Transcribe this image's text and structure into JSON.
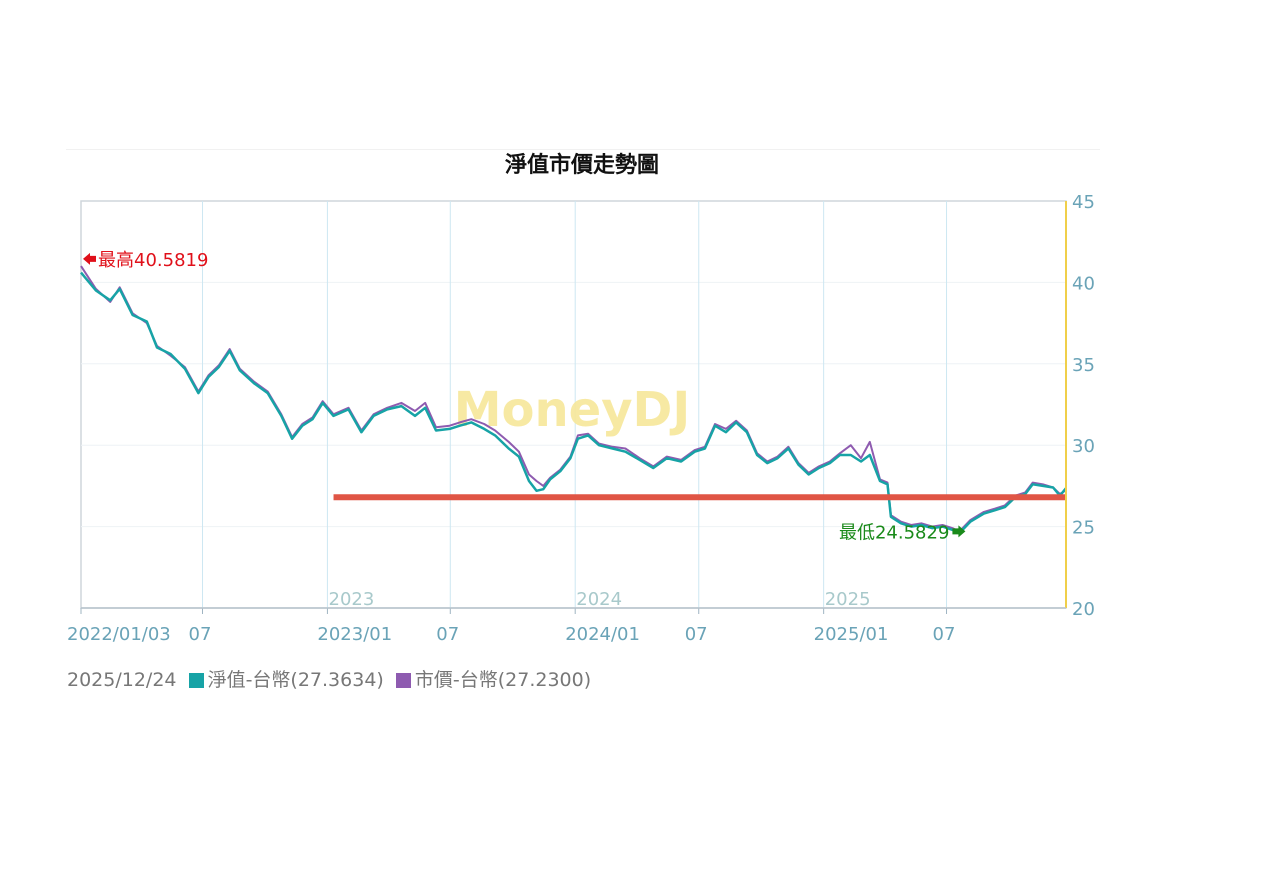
{
  "chart_data": {
    "type": "line",
    "title": "淨值市價走勢圖",
    "watermark": "MoneyDJ",
    "x_range": [
      "2022-01-03",
      "2025-12-24"
    ],
    "ylim": [
      20,
      45
    ],
    "y_ticks": [
      20,
      25,
      30,
      35,
      40,
      45
    ],
    "x_tick_labels": [
      {
        "date": "2022-01-03",
        "label": "2022/01/03"
      },
      {
        "date": "2022-07-01",
        "label": "07"
      },
      {
        "date": "2023-01-01",
        "label": "2023/01"
      },
      {
        "date": "2023-07-01",
        "label": "07"
      },
      {
        "date": "2024-01-01",
        "label": "2024/01"
      },
      {
        "date": "2024-07-01",
        "label": "07"
      },
      {
        "date": "2025-01-01",
        "label": "2025/01"
      },
      {
        "date": "2025-07-01",
        "label": "07"
      }
    ],
    "year_labels": [
      {
        "date": "2023-01-01",
        "label": "2023"
      },
      {
        "date": "2024-01-01",
        "label": "2024"
      },
      {
        "date": "2025-01-01",
        "label": "2025"
      }
    ],
    "reference_line": {
      "value": 26.8,
      "start": "2023-01-10",
      "end": "2025-12-24",
      "color": "#e05545"
    },
    "annotations": {
      "high": {
        "label": "最高40.5819",
        "value": 40.5819,
        "date": "2022-01-03",
        "color": "#e0101a"
      },
      "low": {
        "label": "最低24.5829",
        "value": 24.5829,
        "date": "2025-07-20",
        "color": "#1a8a1a"
      }
    },
    "series": [
      {
        "name": "淨值-台幣",
        "color": "#17a3a6",
        "points": [
          [
            "2022-01-03",
            40.6
          ],
          [
            "2022-01-25",
            39.5
          ],
          [
            "2022-02-15",
            38.9
          ],
          [
            "2022-03-01",
            39.6
          ],
          [
            "2022-03-20",
            38.0
          ],
          [
            "2022-04-10",
            37.6
          ],
          [
            "2022-04-25",
            36.0
          ],
          [
            "2022-05-15",
            35.6
          ],
          [
            "2022-06-05",
            34.7
          ],
          [
            "2022-06-25",
            33.2
          ],
          [
            "2022-07-10",
            34.2
          ],
          [
            "2022-07-25",
            34.8
          ],
          [
            "2022-08-10",
            35.8
          ],
          [
            "2022-08-25",
            34.6
          ],
          [
            "2022-09-15",
            33.8
          ],
          [
            "2022-10-05",
            33.2
          ],
          [
            "2022-10-25",
            31.8
          ],
          [
            "2022-11-10",
            30.4
          ],
          [
            "2022-11-25",
            31.2
          ],
          [
            "2022-12-10",
            31.6
          ],
          [
            "2022-12-25",
            32.6
          ],
          [
            "2023-01-10",
            31.8
          ],
          [
            "2023-02-01",
            32.2
          ],
          [
            "2023-02-20",
            30.8
          ],
          [
            "2023-03-10",
            31.8
          ],
          [
            "2023-03-30",
            32.2
          ],
          [
            "2023-04-20",
            32.4
          ],
          [
            "2023-05-10",
            31.8
          ],
          [
            "2023-05-25",
            32.3
          ],
          [
            "2023-06-10",
            30.9
          ],
          [
            "2023-06-30",
            31.0
          ],
          [
            "2023-07-15",
            31.2
          ],
          [
            "2023-08-01",
            31.4
          ],
          [
            "2023-08-20",
            31.0
          ],
          [
            "2023-09-05",
            30.6
          ],
          [
            "2023-09-25",
            29.8
          ],
          [
            "2023-10-10",
            29.3
          ],
          [
            "2023-10-25",
            27.8
          ],
          [
            "2023-11-05",
            27.2
          ],
          [
            "2023-11-15",
            27.3
          ],
          [
            "2023-11-25",
            27.9
          ],
          [
            "2023-12-10",
            28.4
          ],
          [
            "2023-12-25",
            29.2
          ],
          [
            "2024-01-05",
            30.4
          ],
          [
            "2024-01-20",
            30.6
          ],
          [
            "2024-02-05",
            30.0
          ],
          [
            "2024-02-25",
            29.8
          ],
          [
            "2024-03-15",
            29.6
          ],
          [
            "2024-04-05",
            29.1
          ],
          [
            "2024-04-25",
            28.6
          ],
          [
            "2024-05-15",
            29.2
          ],
          [
            "2024-06-05",
            29.0
          ],
          [
            "2024-06-25",
            29.6
          ],
          [
            "2024-07-10",
            29.8
          ],
          [
            "2024-07-25",
            31.2
          ],
          [
            "2024-08-10",
            30.8
          ],
          [
            "2024-08-25",
            31.4
          ],
          [
            "2024-09-10",
            30.8
          ],
          [
            "2024-09-25",
            29.4
          ],
          [
            "2024-10-10",
            28.9
          ],
          [
            "2024-10-25",
            29.2
          ],
          [
            "2024-11-10",
            29.8
          ],
          [
            "2024-11-25",
            28.8
          ],
          [
            "2024-12-10",
            28.2
          ],
          [
            "2024-12-25",
            28.6
          ],
          [
            "2025-01-10",
            28.9
          ],
          [
            "2025-01-25",
            29.4
          ],
          [
            "2025-02-10",
            29.4
          ],
          [
            "2025-02-25",
            29.0
          ],
          [
            "2025-03-10",
            29.4
          ],
          [
            "2025-03-25",
            27.8
          ],
          [
            "2025-04-05",
            27.6
          ],
          [
            "2025-04-10",
            25.6
          ],
          [
            "2025-04-25",
            25.2
          ],
          [
            "2025-05-10",
            25.0
          ],
          [
            "2025-05-25",
            25.1
          ],
          [
            "2025-06-10",
            24.9
          ],
          [
            "2025-06-25",
            25.0
          ],
          [
            "2025-07-10",
            24.8
          ],
          [
            "2025-07-20",
            24.6
          ],
          [
            "2025-08-05",
            25.3
          ],
          [
            "2025-08-25",
            25.8
          ],
          [
            "2025-09-10",
            26.0
          ],
          [
            "2025-09-25",
            26.2
          ],
          [
            "2025-10-10",
            26.8
          ],
          [
            "2025-10-25",
            27.0
          ],
          [
            "2025-11-05",
            27.6
          ],
          [
            "2025-11-20",
            27.5
          ],
          [
            "2025-12-05",
            27.4
          ],
          [
            "2025-12-15",
            26.9
          ],
          [
            "2025-12-24",
            27.36
          ]
        ]
      },
      {
        "name": "市價-台幣",
        "color": "#8e5bb0",
        "points": [
          [
            "2022-01-03",
            41.0
          ],
          [
            "2022-01-25",
            39.6
          ],
          [
            "2022-02-15",
            38.8
          ],
          [
            "2022-03-01",
            39.7
          ],
          [
            "2022-03-20",
            38.1
          ],
          [
            "2022-04-10",
            37.5
          ],
          [
            "2022-04-25",
            36.1
          ],
          [
            "2022-05-15",
            35.5
          ],
          [
            "2022-06-05",
            34.8
          ],
          [
            "2022-06-25",
            33.3
          ],
          [
            "2022-07-10",
            34.3
          ],
          [
            "2022-07-25",
            34.9
          ],
          [
            "2022-08-10",
            35.9
          ],
          [
            "2022-08-25",
            34.7
          ],
          [
            "2022-09-15",
            33.9
          ],
          [
            "2022-10-05",
            33.3
          ],
          [
            "2022-10-25",
            31.9
          ],
          [
            "2022-11-10",
            30.5
          ],
          [
            "2022-11-25",
            31.3
          ],
          [
            "2022-12-10",
            31.7
          ],
          [
            "2022-12-25",
            32.7
          ],
          [
            "2023-01-10",
            31.9
          ],
          [
            "2023-02-01",
            32.3
          ],
          [
            "2023-02-20",
            30.9
          ],
          [
            "2023-03-10",
            31.9
          ],
          [
            "2023-03-30",
            32.3
          ],
          [
            "2023-04-20",
            32.6
          ],
          [
            "2023-05-10",
            32.1
          ],
          [
            "2023-05-25",
            32.6
          ],
          [
            "2023-06-10",
            31.1
          ],
          [
            "2023-06-30",
            31.2
          ],
          [
            "2023-07-15",
            31.4
          ],
          [
            "2023-08-01",
            31.6
          ],
          [
            "2023-08-20",
            31.3
          ],
          [
            "2023-09-05",
            30.9
          ],
          [
            "2023-09-25",
            30.2
          ],
          [
            "2023-10-10",
            29.6
          ],
          [
            "2023-10-25",
            28.2
          ],
          [
            "2023-11-05",
            27.8
          ],
          [
            "2023-11-15",
            27.5
          ],
          [
            "2023-11-25",
            28.0
          ],
          [
            "2023-12-10",
            28.5
          ],
          [
            "2023-12-25",
            29.3
          ],
          [
            "2024-01-05",
            30.6
          ],
          [
            "2024-01-20",
            30.7
          ],
          [
            "2024-02-05",
            30.1
          ],
          [
            "2024-02-25",
            29.9
          ],
          [
            "2024-03-15",
            29.8
          ],
          [
            "2024-04-05",
            29.2
          ],
          [
            "2024-04-25",
            28.7
          ],
          [
            "2024-05-15",
            29.3
          ],
          [
            "2024-06-05",
            29.1
          ],
          [
            "2024-06-25",
            29.7
          ],
          [
            "2024-07-10",
            29.9
          ],
          [
            "2024-07-25",
            31.3
          ],
          [
            "2024-08-10",
            31.0
          ],
          [
            "2024-08-25",
            31.5
          ],
          [
            "2024-09-10",
            30.9
          ],
          [
            "2024-09-25",
            29.5
          ],
          [
            "2024-10-10",
            29.0
          ],
          [
            "2024-10-25",
            29.3
          ],
          [
            "2024-11-10",
            29.9
          ],
          [
            "2024-11-25",
            28.9
          ],
          [
            "2024-12-10",
            28.3
          ],
          [
            "2024-12-25",
            28.7
          ],
          [
            "2025-01-10",
            29.0
          ],
          [
            "2025-01-25",
            29.5
          ],
          [
            "2025-02-10",
            30.0
          ],
          [
            "2025-02-25",
            29.2
          ],
          [
            "2025-03-10",
            30.2
          ],
          [
            "2025-03-25",
            27.9
          ],
          [
            "2025-04-05",
            27.7
          ],
          [
            "2025-04-10",
            25.7
          ],
          [
            "2025-04-25",
            25.3
          ],
          [
            "2025-05-10",
            25.1
          ],
          [
            "2025-05-25",
            25.2
          ],
          [
            "2025-06-10",
            25.0
          ],
          [
            "2025-06-25",
            25.1
          ],
          [
            "2025-07-10",
            24.9
          ],
          [
            "2025-07-20",
            24.7
          ],
          [
            "2025-08-05",
            25.4
          ],
          [
            "2025-08-25",
            25.9
          ],
          [
            "2025-09-10",
            26.1
          ],
          [
            "2025-09-25",
            26.3
          ],
          [
            "2025-10-10",
            26.9
          ],
          [
            "2025-10-25",
            27.1
          ],
          [
            "2025-11-05",
            27.7
          ],
          [
            "2025-11-20",
            27.6
          ],
          [
            "2025-12-05",
            27.4
          ],
          [
            "2025-12-15",
            27.0
          ],
          [
            "2025-12-24",
            27.23
          ]
        ]
      }
    ]
  },
  "legend": {
    "date": "2025/12/24",
    "nav_label": "淨值-台幣(27.3634)",
    "nav_color": "#17a3a6",
    "price_label": "市價-台幣(27.2300)",
    "price_color": "#8e5bb0"
  }
}
